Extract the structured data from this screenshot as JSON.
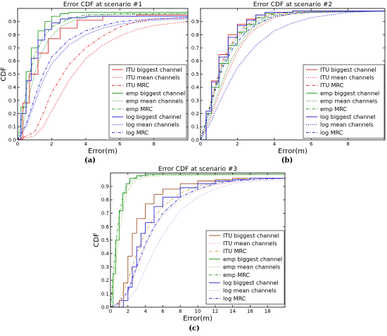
{
  "captions": [
    "(a)",
    "(b)",
    "(c)"
  ],
  "chart_data": [
    {
      "type": "line",
      "title": "Error CDF at scenario #1",
      "xlabel": "Error(m)",
      "ylabel": "CDF",
      "xlim": [
        0,
        10
      ],
      "ylim": [
        0,
        1
      ],
      "xticks": [
        "0",
        "2",
        "4",
        "6",
        "8"
      ],
      "yticks": [
        "0.0",
        "0.1",
        "0.2",
        "0.3",
        "0.4",
        "0.5",
        "0.6",
        "0.7",
        "0.8",
        "0.9"
      ],
      "legend_position": "bottom-right",
      "series": [
        {
          "name": "ITU biggest channel",
          "color": "#e03030",
          "dash": "solid",
          "x": [
            0,
            0.3,
            0.7,
            1.2,
            1.8,
            2.5,
            3.5,
            5,
            7,
            10
          ],
          "y": [
            0,
            0.28,
            0.5,
            0.66,
            0.77,
            0.85,
            0.91,
            0.94,
            0.95,
            0.95
          ]
        },
        {
          "name": "ITU mean channels",
          "color": "#e03030",
          "dash": "dotted",
          "x": [
            0,
            1,
            1.5,
            2,
            3,
            4,
            5,
            6,
            7,
            8,
            10
          ],
          "y": [
            0,
            0.03,
            0.1,
            0.22,
            0.45,
            0.62,
            0.72,
            0.79,
            0.84,
            0.87,
            0.9
          ]
        },
        {
          "name": "ITU MRC",
          "color": "#e03030",
          "dash": "dashdot",
          "x": [
            0,
            1,
            1.5,
            2,
            3,
            4,
            5,
            6,
            7,
            8,
            10
          ],
          "y": [
            0,
            0.06,
            0.2,
            0.36,
            0.57,
            0.7,
            0.79,
            0.86,
            0.9,
            0.92,
            0.93
          ]
        },
        {
          "name": "emp biggest channel",
          "color": "#2a9a2a",
          "dash": "solid",
          "x": [
            0,
            0.2,
            0.5,
            0.8,
            1.2,
            1.6,
            2,
            2.5,
            3,
            5,
            10
          ],
          "y": [
            0,
            0.25,
            0.52,
            0.7,
            0.83,
            0.9,
            0.94,
            0.96,
            0.97,
            0.97,
            0.97
          ]
        },
        {
          "name": "emp mean channels",
          "color": "#2a9a2a",
          "dash": "dotted",
          "x": [
            0,
            0.3,
            0.6,
            1,
            1.4,
            1.8,
            2.5,
            3.5,
            5,
            10
          ],
          "y": [
            0,
            0.1,
            0.3,
            0.5,
            0.66,
            0.76,
            0.86,
            0.92,
            0.95,
            0.96
          ]
        },
        {
          "name": "emp MRC",
          "color": "#2a9a2a",
          "dash": "dashdot",
          "x": [
            0,
            0.3,
            0.6,
            1,
            1.5,
            2,
            3,
            4,
            6,
            10
          ],
          "y": [
            0,
            0.2,
            0.45,
            0.64,
            0.78,
            0.86,
            0.92,
            0.95,
            0.96,
            0.96
          ]
        },
        {
          "name": "log biggest channel",
          "color": "#2b2bd0",
          "dash": "solid",
          "x": [
            0,
            0.2,
            0.5,
            0.8,
            1.2,
            1.6,
            2,
            2.5,
            3,
            4,
            6,
            10
          ],
          "y": [
            0,
            0.2,
            0.45,
            0.62,
            0.76,
            0.84,
            0.89,
            0.92,
            0.93,
            0.94,
            0.94,
            0.94
          ]
        },
        {
          "name": "log mean channels",
          "color": "#2b2bd0",
          "dash": "dotted",
          "x": [
            0,
            0.5,
            1,
            1.5,
            2,
            3,
            4,
            5,
            6,
            8,
            10
          ],
          "y": [
            0,
            0.1,
            0.28,
            0.45,
            0.58,
            0.72,
            0.8,
            0.85,
            0.88,
            0.91,
            0.92
          ]
        },
        {
          "name": "log MRC",
          "color": "#2b2bd0",
          "dash": "dashdot",
          "x": [
            0,
            0.5,
            1,
            1.5,
            2,
            3,
            4,
            5,
            6,
            8,
            10
          ],
          "y": [
            0,
            0.12,
            0.32,
            0.5,
            0.63,
            0.76,
            0.83,
            0.87,
            0.9,
            0.92,
            0.93
          ]
        }
      ]
    },
    {
      "type": "line",
      "title": "Error CDF at scenario #2",
      "xlabel": "Error(m)",
      "ylabel": "",
      "xlim": [
        0,
        10
      ],
      "ylim": [
        0,
        1
      ],
      "xticks": [
        "0",
        "2",
        "4",
        "6",
        "8"
      ],
      "yticks": [
        "0.0",
        "0.1",
        "0.2",
        "0.3",
        "0.4",
        "0.5",
        "0.6",
        "0.7",
        "0.8",
        "0.9"
      ],
      "legend_position": "bottom-right",
      "series": [
        {
          "name": "ITU biggest channel",
          "color": "#e03030",
          "dash": "solid",
          "x": [
            0,
            0.3,
            0.6,
            1,
            1.5,
            2,
            2.5,
            3,
            3.5,
            5,
            10
          ],
          "y": [
            0,
            0.22,
            0.45,
            0.65,
            0.8,
            0.88,
            0.92,
            0.95,
            0.97,
            0.98,
            0.98
          ]
        },
        {
          "name": "ITU mean channels",
          "color": "#e03030",
          "dash": "dotted",
          "x": [
            0,
            0.5,
            1,
            1.5,
            2,
            2.5,
            3,
            4,
            5,
            6,
            8,
            10
          ],
          "y": [
            0,
            0.15,
            0.35,
            0.52,
            0.67,
            0.78,
            0.85,
            0.93,
            0.96,
            0.97,
            0.98,
            0.98
          ]
        },
        {
          "name": "ITU MRC",
          "color": "#e03030",
          "dash": "dashdot",
          "x": [
            0,
            0.4,
            0.8,
            1.2,
            1.8,
            2.4,
            3,
            4,
            5,
            10
          ],
          "y": [
            0,
            0.2,
            0.42,
            0.6,
            0.76,
            0.86,
            0.92,
            0.96,
            0.97,
            0.98
          ]
        },
        {
          "name": "emp biggest channel",
          "color": "#2a9a2a",
          "dash": "solid",
          "x": [
            0,
            0.3,
            0.6,
            1,
            1.5,
            2,
            2.5,
            3,
            3.5,
            4,
            5,
            10
          ],
          "y": [
            0,
            0.2,
            0.4,
            0.58,
            0.72,
            0.82,
            0.88,
            0.93,
            0.96,
            0.97,
            0.98,
            0.98
          ]
        },
        {
          "name": "emp mean channels",
          "color": "#2a9a2a",
          "dash": "dotted",
          "x": [
            0,
            0.5,
            1,
            1.5,
            2,
            2.5,
            3,
            4,
            5,
            6,
            10
          ],
          "y": [
            0,
            0.18,
            0.38,
            0.56,
            0.7,
            0.8,
            0.87,
            0.94,
            0.96,
            0.97,
            0.98
          ]
        },
        {
          "name": "emp MRC",
          "color": "#2a9a2a",
          "dash": "dashdot",
          "x": [
            0,
            0.4,
            0.8,
            1.2,
            1.8,
            2.4,
            3,
            4,
            5,
            10
          ],
          "y": [
            0,
            0.2,
            0.4,
            0.57,
            0.74,
            0.84,
            0.9,
            0.95,
            0.97,
            0.98
          ]
        },
        {
          "name": "log biggest channel",
          "color": "#2b2bd0",
          "dash": "solid",
          "x": [
            0,
            0.3,
            0.6,
            1,
            1.5,
            2,
            2.5,
            3,
            3.5,
            5,
            10
          ],
          "y": [
            0,
            0.22,
            0.44,
            0.63,
            0.78,
            0.87,
            0.91,
            0.95,
            0.97,
            0.98,
            0.98
          ]
        },
        {
          "name": "log mean channels",
          "color": "#2b2bd0",
          "dash": "dotted",
          "x": [
            0,
            0.5,
            1,
            1.5,
            2,
            3,
            4,
            5,
            6,
            7,
            8,
            10
          ],
          "y": [
            0,
            0.12,
            0.28,
            0.42,
            0.55,
            0.72,
            0.83,
            0.89,
            0.93,
            0.95,
            0.97,
            0.98
          ]
        },
        {
          "name": "log MRC",
          "color": "#2b2bd0",
          "dash": "dashdot",
          "x": [
            0,
            0.4,
            0.8,
            1.2,
            1.8,
            2.4,
            3,
            4,
            5,
            6,
            10
          ],
          "y": [
            0,
            0.18,
            0.38,
            0.55,
            0.71,
            0.81,
            0.88,
            0.94,
            0.96,
            0.97,
            0.98
          ]
        }
      ]
    },
    {
      "type": "line",
      "title": "Error CDF at scenario #3",
      "xlabel": "Error(m)",
      "ylabel": "CDF",
      "xlim": [
        0,
        20
      ],
      "ylim": [
        0,
        1
      ],
      "xticks": [
        "0",
        "2",
        "4",
        "6",
        "8",
        "10",
        "12",
        "14",
        "16",
        "18"
      ],
      "yticks": [
        "0.0",
        "0.1",
        "0.2",
        "0.3",
        "0.4",
        "0.5",
        "0.6",
        "0.7",
        "0.8",
        "0.9"
      ],
      "legend_position": "bottom-right",
      "series": [
        {
          "name": "ITU biggest channel",
          "color": "#a0522d",
          "dash": "solid",
          "x": [
            0,
            1,
            1.5,
            2,
            2.5,
            3,
            4,
            5,
            6,
            8,
            10,
            12,
            14,
            16,
            20
          ],
          "y": [
            0,
            0.05,
            0.18,
            0.38,
            0.55,
            0.66,
            0.77,
            0.84,
            0.88,
            0.92,
            0.94,
            0.95,
            0.96,
            0.96,
            0.97
          ]
        },
        {
          "name": "ITU mean channels",
          "color": "#e8a0a0",
          "dash": "dotted",
          "x": [
            0,
            1,
            2,
            3,
            4,
            5,
            6,
            8,
            10,
            12,
            14,
            16,
            20
          ],
          "y": [
            0,
            0.02,
            0.1,
            0.28,
            0.45,
            0.58,
            0.68,
            0.8,
            0.87,
            0.91,
            0.93,
            0.95,
            0.96
          ]
        },
        {
          "name": "ITU MRC",
          "color": "#d2a050",
          "dash": "dashdot",
          "x": [
            0,
            1,
            2,
            3,
            4,
            5,
            6,
            8,
            10,
            12,
            14,
            16,
            20
          ],
          "y": [
            0,
            0.04,
            0.2,
            0.4,
            0.56,
            0.67,
            0.75,
            0.85,
            0.9,
            0.93,
            0.95,
            0.96,
            0.96
          ]
        },
        {
          "name": "emp biggest channel",
          "color": "#2a9a2a",
          "dash": "solid",
          "x": [
            0,
            0.3,
            0.6,
            1,
            1.4,
            1.8,
            2.2,
            3,
            4,
            6,
            20
          ],
          "y": [
            0,
            0.25,
            0.5,
            0.72,
            0.85,
            0.92,
            0.96,
            0.98,
            0.99,
            0.99,
            0.99
          ]
        },
        {
          "name": "emp mean channels",
          "color": "#8fbc5a",
          "dash": "dotted",
          "x": [
            0,
            0.4,
            0.8,
            1.2,
            1.6,
            2,
            2.5,
            3,
            4,
            6,
            20
          ],
          "y": [
            0,
            0.2,
            0.44,
            0.64,
            0.78,
            0.87,
            0.92,
            0.95,
            0.97,
            0.98,
            0.99
          ]
        },
        {
          "name": "emp MRC",
          "color": "#2a9a2a",
          "dash": "dashdot",
          "x": [
            0,
            0.3,
            0.6,
            1,
            1.4,
            1.8,
            2.3,
            3,
            4,
            6,
            20
          ],
          "y": [
            0,
            0.22,
            0.46,
            0.68,
            0.82,
            0.9,
            0.94,
            0.97,
            0.98,
            0.99,
            0.99
          ]
        },
        {
          "name": "log biggest channel",
          "color": "#2b2bd0",
          "dash": "solid",
          "x": [
            0,
            1.5,
            2,
            2.5,
            3,
            3.5,
            4,
            5,
            6,
            8,
            10,
            12,
            14,
            16,
            20
          ],
          "y": [
            0,
            0.05,
            0.15,
            0.3,
            0.45,
            0.55,
            0.63,
            0.75,
            0.82,
            0.89,
            0.92,
            0.94,
            0.95,
            0.96,
            0.96
          ]
        },
        {
          "name": "log mean channels",
          "color": "#c0a0e0",
          "dash": "dotted",
          "x": [
            0,
            1,
            2,
            3,
            4,
            5,
            6,
            8,
            10,
            12,
            14,
            16,
            20
          ],
          "y": [
            0,
            0.01,
            0.05,
            0.14,
            0.28,
            0.42,
            0.54,
            0.72,
            0.82,
            0.88,
            0.92,
            0.94,
            0.95
          ]
        },
        {
          "name": "log MRC",
          "color": "#2b2bd0",
          "dash": "dashdot",
          "x": [
            0,
            1,
            2,
            3,
            4,
            5,
            6,
            8,
            10,
            12,
            14,
            16,
            20
          ],
          "y": [
            0,
            0.03,
            0.12,
            0.3,
            0.47,
            0.6,
            0.7,
            0.82,
            0.88,
            0.92,
            0.94,
            0.95,
            0.96
          ]
        }
      ]
    }
  ]
}
